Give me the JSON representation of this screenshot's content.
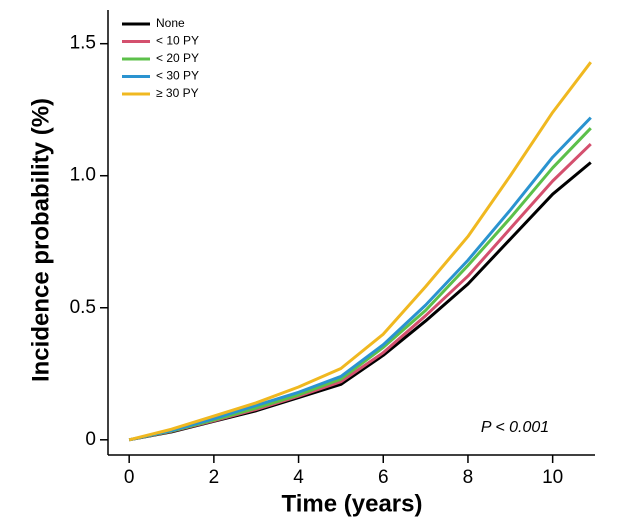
{
  "chart_data": {
    "type": "line",
    "xlabel": "Time (years)",
    "ylabel": "Incidence probability (%)",
    "annotation": "P < 0.001",
    "x": [
      0,
      1,
      2,
      3,
      4,
      5,
      6,
      7,
      8,
      9,
      10,
      10.9
    ],
    "xlim": [
      -0.5,
      11
    ],
    "xticks": [
      0,
      2,
      4,
      6,
      8,
      10
    ],
    "ylim": [
      -0.05,
      1.62
    ],
    "yticks": [
      0,
      0.5,
      {
        "value": 1,
        "label": "1.0"
      },
      1.5
    ],
    "series": [
      {
        "name": "None",
        "color": "#000000",
        "values": [
          0,
          0.03,
          0.07,
          0.11,
          0.16,
          0.21,
          0.32,
          0.45,
          0.59,
          0.76,
          0.93,
          1.05
        ]
      },
      {
        "name": "< 10 PY",
        "color": "#d4506e",
        "values": [
          0,
          0.032,
          0.072,
          0.115,
          0.165,
          0.22,
          0.33,
          0.47,
          0.62,
          0.8,
          0.98,
          1.12
        ]
      },
      {
        "name": "< 20 PY",
        "color": "#5cc04a",
        "values": [
          0,
          0.033,
          0.075,
          0.12,
          0.17,
          0.23,
          0.35,
          0.49,
          0.66,
          0.84,
          1.03,
          1.18
        ]
      },
      {
        "name": "< 30 PY",
        "color": "#2a93d0",
        "values": [
          0,
          0.035,
          0.08,
          0.13,
          0.18,
          0.24,
          0.36,
          0.51,
          0.68,
          0.87,
          1.07,
          1.22
        ]
      },
      {
        "name": "≥ 30 PY",
        "color": "#f0b820",
        "values": [
          0,
          0.04,
          0.09,
          0.14,
          0.2,
          0.27,
          0.4,
          0.58,
          0.77,
          1.0,
          1.24,
          1.43
        ]
      }
    ]
  }
}
